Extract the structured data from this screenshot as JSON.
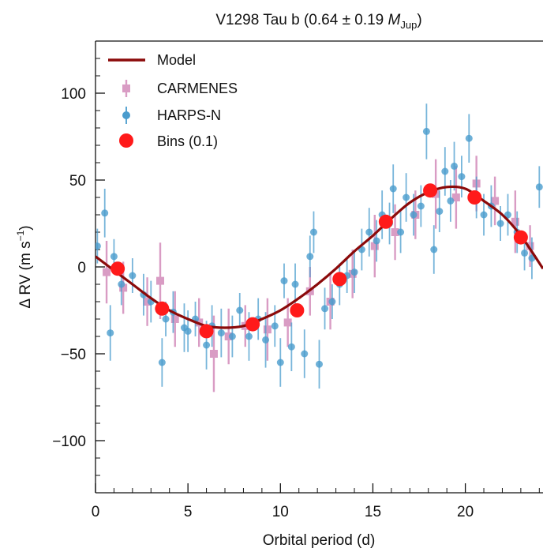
{
  "chart_data": {
    "type": "scatter",
    "title": "V1298 Tau b (0.64 ± 0.19 ",
    "title_mass_symbol": "M",
    "title_mass_sub": "Jup",
    "title_close": ")",
    "xlabel": "Orbital period (d)",
    "ylabel_main": "Δ RV (m s",
    "ylabel_sup": "−1",
    "ylabel_close": ")",
    "xlim": [
      0,
      24.2
    ],
    "ylim": [
      -130,
      130
    ],
    "xticks": [
      0,
      5,
      10,
      15,
      20
    ],
    "xtick_labels": [
      "0",
      "5",
      "10",
      "15",
      "20"
    ],
    "yticks": [
      -100,
      -50,
      0,
      50,
      100
    ],
    "ytick_labels": [
      "−100",
      "−50",
      "0",
      "50",
      "100"
    ],
    "legend_position": "top-left",
    "legend": [
      "Model",
      "CARMENES",
      "HARPS-N",
      "Bins (0.1)"
    ],
    "colors": {
      "model": "#8b0a0a",
      "carmenes": "#d99cc4",
      "harpsn": "#4a9ccd",
      "bins": "#ff1a1a"
    },
    "series": [
      {
        "name": "Model",
        "kind": "line",
        "x": [
          0,
          1,
          2,
          3,
          4,
          5,
          6,
          7,
          8,
          9,
          10,
          11,
          12,
          13,
          14,
          15,
          16,
          17,
          18,
          19,
          20,
          21,
          22,
          23,
          24.2
        ],
        "y": [
          6,
          -2,
          -10,
          -18,
          -25,
          -30,
          -34,
          -35,
          -34,
          -30,
          -25,
          -18,
          -10,
          -1,
          9,
          18,
          28,
          37,
          43,
          46,
          45,
          38,
          30,
          18,
          -1
        ]
      },
      {
        "name": "CARMENES",
        "kind": "points",
        "x": [
          0.6,
          1.5,
          2.8,
          3.5,
          4.3,
          5.6,
          6.4,
          7.2,
          8.1,
          9.3,
          10.4,
          11.6,
          12.7,
          13.9,
          15.1,
          16.2,
          17.3,
          18.4,
          19.5,
          20.6,
          21.6,
          22.7,
          23.5
        ],
        "y": [
          -3,
          -12,
          -20,
          -8,
          -30,
          -32,
          -50,
          -40,
          -34,
          -36,
          -32,
          -14,
          -20,
          -4,
          12,
          20,
          30,
          42,
          40,
          48,
          38,
          26,
          12
        ],
        "err": [
          18,
          15,
          14,
          22,
          16,
          14,
          22,
          16,
          12,
          18,
          14,
          14,
          16,
          14,
          18,
          16,
          14,
          20,
          18,
          16,
          14,
          18,
          12
        ]
      },
      {
        "name": "HARPS-N",
        "kind": "points",
        "x": [
          0.1,
          0.5,
          0.8,
          1.0,
          1.4,
          2.0,
          2.6,
          3.0,
          3.6,
          3.8,
          4.2,
          4.8,
          5.0,
          5.4,
          6.0,
          6.3,
          6.8,
          7.4,
          7.8,
          8.3,
          8.8,
          9.2,
          9.7,
          10.0,
          10.2,
          10.6,
          10.8,
          11.3,
          11.6,
          11.8,
          12.1,
          12.4,
          12.8,
          13.2,
          13.6,
          14.0,
          14.4,
          14.8,
          15.2,
          15.5,
          15.9,
          16.1,
          16.5,
          16.8,
          17.2,
          17.6,
          17.9,
          18.3,
          18.6,
          18.9,
          19.2,
          19.4,
          19.8,
          20.2,
          20.6,
          21.0,
          21.4,
          21.9,
          22.3,
          22.8,
          23.2,
          23.6,
          24.0
        ],
        "y": [
          12,
          31,
          -38,
          6,
          -10,
          -5,
          -16,
          -20,
          -55,
          -30,
          -26,
          -35,
          -37,
          -30,
          -45,
          -34,
          -38,
          -40,
          -25,
          -40,
          -30,
          -42,
          -34,
          -55,
          -8,
          -46,
          -10,
          -50,
          6,
          20,
          -56,
          -24,
          -20,
          -10,
          -5,
          -3,
          10,
          20,
          15,
          30,
          25,
          45,
          20,
          40,
          30,
          35,
          78,
          10,
          32,
          55,
          38,
          58,
          52,
          74,
          40,
          30,
          35,
          25,
          30,
          20,
          8,
          5,
          46
        ],
        "err": [
          10,
          14,
          16,
          10,
          12,
          10,
          12,
          12,
          14,
          10,
          12,
          14,
          12,
          10,
          14,
          12,
          14,
          12,
          10,
          14,
          12,
          16,
          12,
          14,
          10,
          14,
          12,
          14,
          12,
          12,
          14,
          12,
          10,
          12,
          10,
          12,
          12,
          14,
          12,
          14,
          12,
          14,
          12,
          14,
          12,
          12,
          16,
          14,
          12,
          14,
          12,
          14,
          12,
          14,
          12,
          12,
          12,
          10,
          12,
          12,
          10,
          12,
          12
        ]
      },
      {
        "name": "Bins (0.1)",
        "kind": "bins",
        "x": [
          1.2,
          3.6,
          6.0,
          8.5,
          10.9,
          13.2,
          15.7,
          18.1,
          20.5,
          23.0
        ],
        "y": [
          -1,
          -24,
          -37,
          -33,
          -25,
          -7,
          26,
          44,
          40,
          17
        ],
        "err": [
          3,
          3,
          3,
          3,
          3,
          3,
          3,
          3,
          3,
          3
        ]
      }
    ]
  }
}
